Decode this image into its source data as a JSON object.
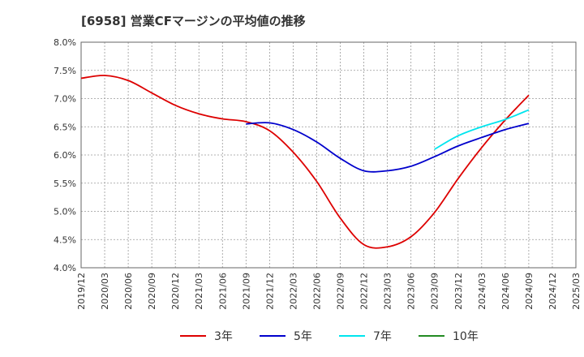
{
  "chart_data": {
    "type": "line",
    "title": "[6958]  営業CFマージンの平均値の推移",
    "xlabel": "",
    "ylabel": "",
    "x_ticks": [
      "2019/12",
      "2020/03",
      "2020/06",
      "2020/09",
      "2020/12",
      "2021/03",
      "2021/06",
      "2021/09",
      "2021/12",
      "2022/03",
      "2022/06",
      "2022/09",
      "2022/12",
      "2023/03",
      "2023/06",
      "2023/09",
      "2023/12",
      "2024/03",
      "2024/06",
      "2024/09",
      "2024/12",
      "2025/03"
    ],
    "y_ticks": [
      "4.0%",
      "4.5%",
      "5.0%",
      "5.5%",
      "6.0%",
      "6.5%",
      "7.0%",
      "7.5%",
      "8.0%"
    ],
    "ylim": [
      4.0,
      8.0
    ],
    "grid": true,
    "legend_position": "bottom",
    "series": [
      {
        "name": "3年",
        "color": "#dd0000",
        "x": [
          "2019/12",
          "2020/03",
          "2020/06",
          "2020/09",
          "2020/12",
          "2021/03",
          "2021/06",
          "2021/09",
          "2021/12",
          "2022/03",
          "2022/06",
          "2022/09",
          "2022/12",
          "2023/03",
          "2023/06",
          "2023/09",
          "2023/12",
          "2024/03",
          "2024/06",
          "2024/09"
        ],
        "values": [
          7.36,
          7.41,
          7.32,
          7.1,
          6.88,
          6.73,
          6.64,
          6.59,
          6.43,
          6.05,
          5.53,
          4.88,
          4.41,
          4.37,
          4.55,
          4.98,
          5.58,
          6.13,
          6.62,
          7.06
        ]
      },
      {
        "name": "5年",
        "color": "#0000cc",
        "x": [
          "2021/09",
          "2021/12",
          "2022/03",
          "2022/06",
          "2022/09",
          "2022/12",
          "2023/03",
          "2023/06",
          "2023/09",
          "2023/12",
          "2024/03",
          "2024/06",
          "2024/09"
        ],
        "values": [
          6.55,
          6.57,
          6.45,
          6.23,
          5.94,
          5.72,
          5.72,
          5.8,
          5.97,
          6.16,
          6.31,
          6.45,
          6.56
        ]
      },
      {
        "name": "7年",
        "color": "#00e5ee",
        "x": [
          "2023/09",
          "2023/12",
          "2024/03",
          "2024/06",
          "2024/09"
        ],
        "values": [
          6.1,
          6.34,
          6.5,
          6.63,
          6.8
        ]
      },
      {
        "name": "10年",
        "color": "#228b22",
        "x": [],
        "values": []
      }
    ]
  }
}
